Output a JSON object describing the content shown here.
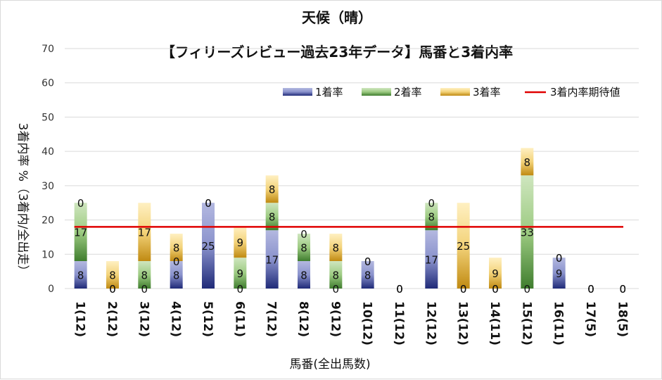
{
  "chart_data": {
    "type": "bar",
    "stacked": true,
    "title": "天候（晴）",
    "subtitle": "【フィリーズレビュー過去23年データ】馬番と3着内率",
    "xlabel": "馬番(全出馬数)",
    "ylabel": "3着内率 %（3着内/全出走）",
    "ylim": [
      0,
      70
    ],
    "yticks": [
      0,
      10,
      20,
      30,
      40,
      50,
      60,
      70
    ],
    "grid": true,
    "legend_position": "top-right",
    "categories": [
      "1(12)",
      "2(12)",
      "3(12)",
      "4(12)",
      "5(12)",
      "6(11)",
      "7(12)",
      "8(12)",
      "9(12)",
      "10(12)",
      "11(12)",
      "12(12)",
      "13(12)",
      "14(11)",
      "15(12)",
      "16(11)",
      "17(5)",
      "18(5)"
    ],
    "series": [
      {
        "name": "1着率",
        "color": "#2e3a87",
        "values": [
          8,
          0,
          0,
          8,
          25,
          0,
          17,
          8,
          0,
          8,
          0,
          17,
          0,
          0,
          0,
          9,
          0,
          0
        ]
      },
      {
        "name": "2着率",
        "color": "#4e8a3a",
        "values": [
          17,
          0,
          8,
          0,
          0,
          9,
          8,
          8,
          8,
          0,
          0,
          8,
          0,
          0,
          33,
          0,
          0,
          0
        ]
      },
      {
        "name": "3着率",
        "color": "#c8951e",
        "values": [
          0,
          8,
          17,
          8,
          0,
          9,
          8,
          0,
          8,
          0,
          0,
          0,
          25,
          9,
          8,
          0,
          0,
          0
        ]
      }
    ],
    "expected_line": {
      "name": "3着内率期待値",
      "color": "#e00000",
      "value": 18
    }
  }
}
